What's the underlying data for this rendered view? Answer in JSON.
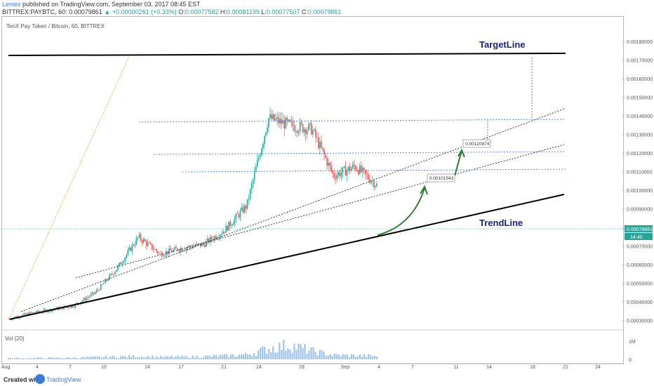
{
  "header": {
    "author": "Leniex",
    "published": "published on TradingView.com, September 03, 2017 08:45 EST",
    "symbol_line_prefix": "BITTREX:PAYBTC, 60",
    "last": "0.00079861",
    "change": "▲ +0.00000261 (+0.33%)",
    "o_label": "O:",
    "o_val": "0.00077582",
    "h_label": "H:",
    "h_val": "0.00081199",
    "l_label": "L:",
    "l_val": "0.00077507",
    "c_label": "C:",
    "c_val": "0.00079861"
  },
  "chart_title": "TenX Pay Token / Bitcoin, 60, BITTREX",
  "volume_label": "Vol (20)",
  "volume_axis_label": "1M",
  "volume_axis_zero": "0",
  "price_badge": "0.00079861",
  "time_badge": "14:40",
  "footer": {
    "created": "Created with",
    "brand": "TradingView"
  },
  "annotations": {
    "target_line": "TargetLine",
    "trend_line": "TrendLine",
    "target_box_1": "0.00101543",
    "target_box_2": "0.00120974"
  },
  "colors": {
    "candle_up": "#26a69a",
    "candle_down": "#ef5350",
    "label_blue": "#1a237e",
    "level_line": "#3a6fd8",
    "arrow_green": "#2e7d32",
    "dotted_orange": "#f5a623",
    "volume_bar": "#9ec5e8"
  },
  "chart_data": {
    "type": "line",
    "title": "TenX Pay Token / Bitcoin, 60, BITTREX",
    "xlabel": "",
    "ylabel": "",
    "x_ticks": [
      "Aug",
      "4",
      "7",
      "10",
      "14",
      "17",
      "21",
      "24",
      "28",
      "Sep",
      "4",
      "7",
      "11",
      "14",
      "18",
      "21",
      "24"
    ],
    "y_ticks": [
      "0.00180000",
      "0.00170000",
      "0.00160000",
      "0.00150000",
      "0.00140000",
      "0.00130000",
      "0.00120000",
      "0.00110000",
      "0.00100000",
      "0.00090000",
      "0.00080000",
      "0.00070000",
      "0.00060000",
      "0.00050000",
      "0.00040000",
      "0.00030000"
    ],
    "ylim": [
      0.00027,
      0.00188
    ],
    "grid": false,
    "series": [
      {
        "x": [
          0,
          2,
          4,
          6,
          8,
          10,
          12,
          14,
          16,
          18,
          20,
          22,
          24,
          26,
          28,
          30,
          32,
          34
        ],
        "values": [
          0.00031,
          0.00034,
          0.00036,
          0.00038,
          0.00045,
          0.00058,
          0.00075,
          0.00066,
          0.00069,
          0.00071,
          0.00079,
          0.00092,
          0.00139,
          0.00135,
          0.00133,
          0.00108,
          0.00113,
          0.00103
        ]
      }
    ],
    "volume": {
      "label": "Vol (20)",
      "axis_max_label": "1M",
      "values": [
        0.05,
        0.05,
        0.06,
        0.07,
        0.09,
        0.11,
        0.13,
        0.1,
        0.11,
        0.12,
        0.15,
        0.2,
        0.45,
        0.6,
        0.35,
        0.18,
        0.16,
        0.14
      ]
    },
    "annotations": [
      {
        "type": "label",
        "text": "TargetLine"
      },
      {
        "type": "label",
        "text": "TrendLine"
      },
      {
        "type": "price-box",
        "text": "0.00101543"
      },
      {
        "type": "price-box",
        "text": "0.00120974"
      }
    ]
  }
}
